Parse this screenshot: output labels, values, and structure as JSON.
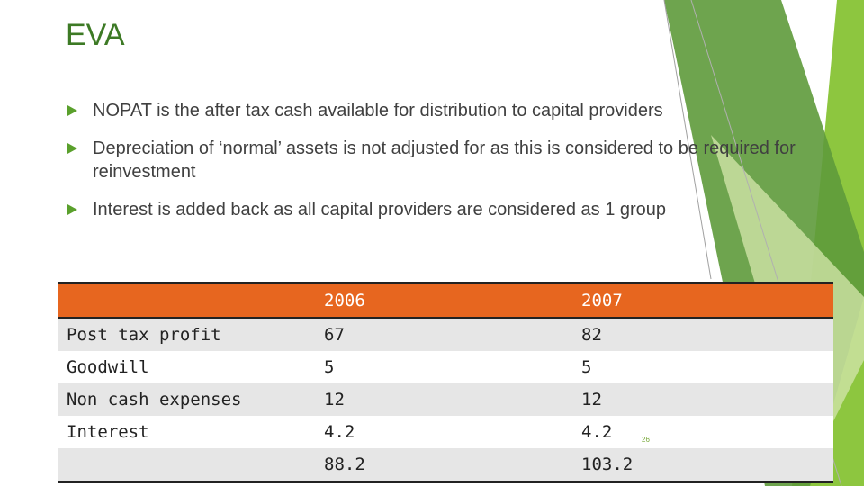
{
  "slide": {
    "title": "EVA",
    "page_number": "26"
  },
  "bullets": [
    {
      "text": "NOPAT is the after tax cash available for distribution to capital providers"
    },
    {
      "text": "Depreciation of ‘normal’ assets is not adjusted for as this is considered to be required for reinvestment"
    },
    {
      "text": "Interest is added back as all capital providers are considered as 1 group"
    }
  ],
  "table": {
    "headers": [
      "",
      "2006",
      "2007"
    ],
    "rows": [
      [
        "Post tax profit",
        "67",
        "82"
      ],
      [
        "Goodwill",
        "5",
        "5"
      ],
      [
        "Non cash expenses",
        "12",
        "12"
      ],
      [
        "Interest",
        "4.2",
        "4.2"
      ],
      [
        "",
        "88.2",
        "103.2"
      ]
    ]
  },
  "colors": {
    "title": "#3d7a25",
    "bullet_marker": "#5aa02c",
    "header_fill": "#e7661f",
    "band_fill": "#e6e6e6",
    "accent_green": "#8dc63f",
    "dark_green": "#4a8a2a"
  }
}
